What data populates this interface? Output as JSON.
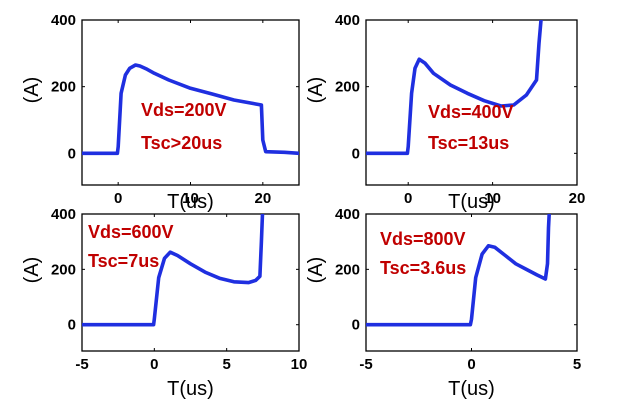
{
  "chart_data": [
    {
      "type": "line",
      "xlabel": "T(us)",
      "ylabel": "(A)",
      "xlim": [
        -5,
        25
      ],
      "ylim": [
        -95,
        400
      ],
      "xticks": [
        0,
        10,
        20
      ],
      "yticks": [
        0,
        200,
        400
      ],
      "grid": false,
      "line_color": "#1f2fe0",
      "annotation_color": "#c00000",
      "annotations": [
        "Vds=200V",
        "Tsc>20us"
      ],
      "series": [
        {
          "x": [
            -5,
            -0.1,
            0,
            0.4,
            1,
            1.6,
            2.4,
            3,
            4,
            5,
            7,
            10,
            13,
            16,
            19.8,
            20,
            20.4,
            23,
            25
          ],
          "y": [
            0,
            0,
            20,
            180,
            235,
            255,
            265,
            262,
            252,
            240,
            220,
            195,
            178,
            160,
            145,
            40,
            5,
            3,
            0
          ]
        }
      ]
    },
    {
      "type": "line",
      "xlabel": "T(us)",
      "ylabel": "(A)",
      "xlim": [
        -5,
        20
      ],
      "ylim": [
        -95,
        400
      ],
      "xticks": [
        0,
        10,
        20
      ],
      "yticks": [
        0,
        200,
        400
      ],
      "grid": false,
      "line_color": "#1f2fe0",
      "annotation_color": "#c00000",
      "annotations": [
        "Vds=400V",
        "Tsc=13us"
      ],
      "series": [
        {
          "x": [
            -5,
            -0.1,
            0,
            0.4,
            0.8,
            1.3,
            2,
            3,
            5,
            7,
            9,
            11,
            12.5,
            14,
            15.2,
            15.5,
            15.8
          ],
          "y": [
            0,
            0,
            20,
            180,
            255,
            282,
            270,
            240,
            205,
            180,
            158,
            142,
            145,
            175,
            220,
            330,
            420
          ]
        }
      ]
    },
    {
      "type": "line",
      "xlabel": "T(us)",
      "ylabel": "(A)",
      "xlim": [
        -5,
        10
      ],
      "ylim": [
        -95,
        400
      ],
      "xticks": [
        -5,
        0,
        5,
        10
      ],
      "yticks": [
        0,
        200,
        400
      ],
      "grid": false,
      "line_color": "#1f2fe0",
      "annotation_color": "#c00000",
      "annotations": [
        "Vds=600V",
        "Tsc=7us"
      ],
      "series": [
        {
          "x": [
            -5,
            -0.05,
            0,
            0.3,
            0.7,
            1.1,
            1.6,
            2.5,
            3.5,
            4.5,
            5.5,
            6.5,
            7,
            7.3,
            7.4,
            7.5
          ],
          "y": [
            0,
            0,
            20,
            170,
            240,
            262,
            250,
            220,
            190,
            168,
            155,
            152,
            160,
            175,
            300,
            430
          ]
        }
      ]
    },
    {
      "type": "line",
      "xlabel": "T(us)",
      "ylabel": "(A)",
      "xlim": [
        -5,
        5
      ],
      "ylim": [
        -95,
        400
      ],
      "xticks": [
        -5,
        0,
        5
      ],
      "yticks": [
        0,
        200,
        400
      ],
      "grid": false,
      "line_color": "#1f2fe0",
      "annotation_color": "#c00000",
      "annotations": [
        "Vds=800V",
        "Tsc=3.6us"
      ],
      "series": [
        {
          "x": [
            -5,
            -0.05,
            0,
            0.2,
            0.5,
            0.8,
            1.1,
            1.6,
            2.1,
            2.6,
            3.1,
            3.5,
            3.6,
            3.65,
            3.7
          ],
          "y": [
            0,
            0,
            20,
            170,
            255,
            285,
            280,
            250,
            220,
            200,
            180,
            165,
            220,
            350,
            430
          ]
        }
      ]
    }
  ]
}
